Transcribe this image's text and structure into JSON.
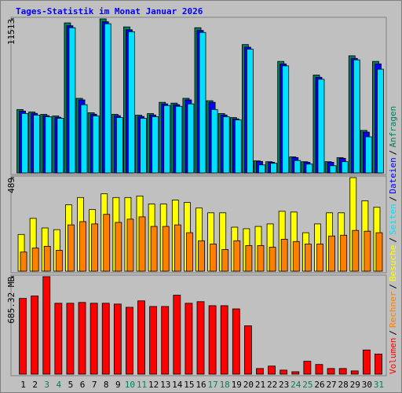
{
  "chart_data": [
    {
      "type": "bar",
      "title": "Tages-Statistik im Monat Januar 2026",
      "legend_separator": "/",
      "ylim": [
        0,
        11513
      ],
      "yticks": [
        11513
      ],
      "series": [
        {
          "name": "Anfragen",
          "color": "#00805c",
          "values": [
            4737,
            4557,
            4377,
            4257,
            11213,
            5577,
            4497,
            11513,
            4377,
            10913,
            4317,
            4437,
            5277,
            5217,
            5577,
            10853,
            5397,
            4437,
            4137,
            9594,
            899,
            839,
            8334,
            1199,
            839,
            7315,
            839,
            1139,
            8754,
            3178,
            8334
          ]
        },
        {
          "name": "Dateien",
          "color": "#0000ff",
          "values": [
            4620,
            4450,
            4280,
            4160,
            11000,
            5460,
            4390,
            11300,
            4280,
            10700,
            4220,
            4330,
            5160,
            5100,
            5460,
            10650,
            5280,
            4330,
            4040,
            9400,
            860,
            800,
            8150,
            1150,
            800,
            7150,
            800,
            1090,
            8560,
            3050,
            8150
          ]
        },
        {
          "name": "Seiten",
          "color": "#00e0ff",
          "values": [
            4440,
            4320,
            4200,
            4080,
            10850,
            5100,
            4260,
            11150,
            4140,
            10550,
            4080,
            4200,
            5040,
            4980,
            5160,
            10500,
            4740,
            4200,
            3960,
            9250,
            600,
            720,
            8000,
            930,
            660,
            7000,
            540,
            840,
            8450,
            2700,
            7750
          ]
        }
      ]
    },
    {
      "type": "bar",
      "ylim": [
        0,
        489
      ],
      "yticks": [
        489
      ],
      "series": [
        {
          "name": "Besuche",
          "color": "#ffff00",
          "values": [
            192,
            276,
            226,
            217,
            347,
            385,
            322,
            405,
            385,
            385,
            393,
            351,
            351,
            372,
            359,
            330,
            305,
            305,
            230,
            222,
            234,
            247,
            313,
            309,
            201,
            247,
            305,
            305,
            489,
            368,
            334
          ]
        },
        {
          "name": "Rechner",
          "color": "#ff8000",
          "values": [
            100,
            121,
            130,
            109,
            242,
            259,
            247,
            297,
            255,
            272,
            284,
            234,
            234,
            242,
            201,
            159,
            142,
            113,
            159,
            134,
            134,
            125,
            167,
            155,
            142,
            142,
            184,
            188,
            213,
            209,
            201
          ]
        }
      ]
    },
    {
      "type": "bar",
      "ylim": [
        0,
        685.32
      ],
      "yticks": [
        {
          "value": 685.32,
          "label": "685.32 MB"
        }
      ],
      "categories": [
        "1",
        "2",
        "3",
        "4",
        "5",
        "6",
        "7",
        "8",
        "9",
        "10",
        "11",
        "12",
        "13",
        "14",
        "15",
        "16",
        "17",
        "18",
        "19",
        "20",
        "21",
        "22",
        "23",
        "24",
        "25",
        "26",
        "27",
        "28",
        "29",
        "30",
        "31"
      ],
      "weekend_categories": [
        "3",
        "4",
        "10",
        "11",
        "17",
        "18",
        "24",
        "25",
        "31"
      ],
      "weekend_color": "#00805c",
      "series": [
        {
          "name": "Volumen",
          "color": "#ff0000",
          "values": [
            532.4,
            549.4,
            685.32,
            498.4,
            498.4,
            504.1,
            498.4,
            498.4,
            492.8,
            470.1,
            515.4,
            475.8,
            475.8,
            555.1,
            498.4,
            509.7,
            481.4,
            481.4,
            458.8,
            339.8,
            39.6,
            56.6,
            28.3,
            17.0,
            90.6,
            68.0,
            39.6,
            39.6,
            22.7,
            169.9,
            141.6
          ]
        }
      ]
    }
  ]
}
